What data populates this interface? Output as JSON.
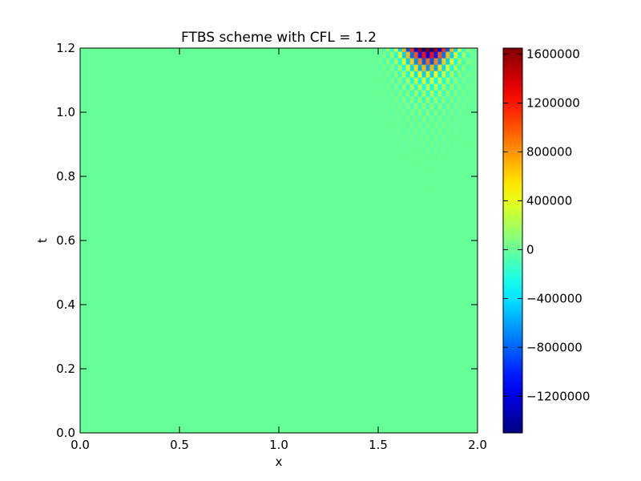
{
  "chart_data": {
    "type": "heatmap",
    "title": "FTBS scheme with CFL = 1.2",
    "xlabel": "x",
    "ylabel": "t",
    "xlim": [
      0.0,
      2.0
    ],
    "ylim": [
      0.0,
      1.2
    ],
    "x_ticks": [
      "0.0",
      "0.5",
      "1.0",
      "1.5",
      "2.0"
    ],
    "y_ticks": [
      "0.0",
      "0.2",
      "0.4",
      "0.6",
      "0.8",
      "1.0",
      "1.2"
    ],
    "colormap": "jet",
    "colorbar": {
      "vmin": -1500000,
      "vmax": 1650000,
      "ticks": [
        "-1200000",
        "-800000",
        "-400000",
        "0",
        "400000",
        "800000",
        "1200000",
        "1600000"
      ]
    },
    "background_value": 0,
    "instability_region": {
      "description": "checkerboard oscillation growing toward top-right",
      "x_range": [
        1.4,
        1.95
      ],
      "t_range": [
        0.75,
        1.2
      ],
      "peak_x": 1.75,
      "peak_t": 1.2,
      "max_value": 1650000,
      "min_value": -1500000
    },
    "grid": false,
    "legend": "none"
  }
}
